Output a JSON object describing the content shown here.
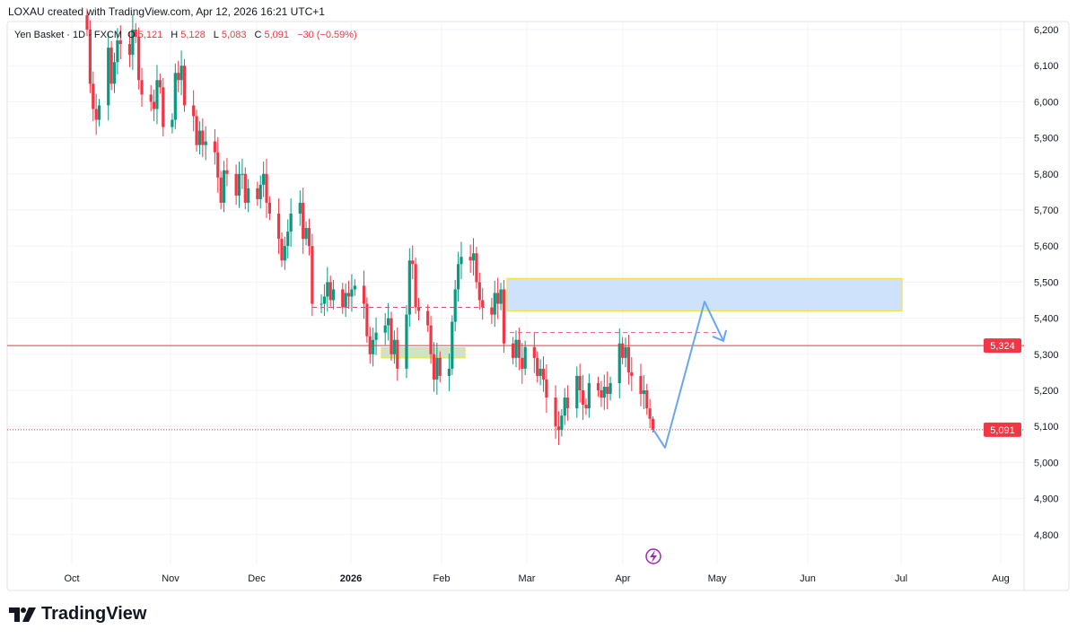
{
  "header": {
    "credit": "LOXAU created with TradingView.com, Apr 12, 2026 16:21 UTC+1",
    "symbol": "Yen Basket · 1D · FXCM",
    "open_label": "O",
    "open": "5,121",
    "high_label": "H",
    "high": "5,128",
    "low_label": "L",
    "low": "5,083",
    "close_label": "C",
    "close": "5,091",
    "change": "−30 (−0.59%)"
  },
  "footer": {
    "brand": "TradingView",
    "logo_icon": "tradingview-logo-icon"
  },
  "colors": {
    "up": "#089981",
    "down": "#f23645",
    "zone": "#cfe2fb",
    "zone_border": "#f5e04a",
    "arrow": "#6aa6f0",
    "event": "#9c27b0"
  },
  "chart_data": {
    "type": "candlestick",
    "title": "",
    "y_ticks": [
      "6,200",
      "6,100",
      "6,000",
      "5,900",
      "5,800",
      "5,700",
      "5,600",
      "5,500",
      "5,400",
      "5,300",
      "5,200",
      "5,100",
      "5,000",
      "4,900",
      "4,800"
    ],
    "ylim": [
      4700,
      6260
    ],
    "x_ticks": [
      "Oct",
      "Nov",
      "Dec",
      "2026",
      "Feb",
      "Mar",
      "Apr",
      "May",
      "Jun",
      "Jul",
      "Aug"
    ],
    "grid": true,
    "first_open": 6240,
    "weekly_closes": [
      [
        6200,
        6050,
        5980,
        5950,
        5990
      ],
      [
        6150,
        6050,
        6110,
        6170,
        6160
      ],
      [
        6130,
        6200,
        6180,
        6060,
        6020
      ],
      [
        6000,
        5980,
        6060,
        6040,
        5930
      ],
      [
        5950,
        6080,
        6060,
        6100,
        5990
      ],
      [
        5960,
        5880,
        5920,
        5880,
        5890
      ],
      [
        5860,
        5790,
        5720,
        5810,
        5800
      ],
      [
        5740,
        5800,
        5800,
        5720,
        5760
      ],
      [
        5730,
        5770,
        5800,
        5720,
        5690
      ],
      [
        5620,
        5560,
        5600,
        5640,
        5690
      ],
      [
        5720,
        5620,
        5650,
        5600,
        5440
      ],
      [
        5440,
        5460,
        5500,
        5450,
        5480
      ],
      [
        5430,
        5470,
        5460,
        5480,
        5490
      ],
      [
        5440,
        5350,
        5300,
        5340,
        5360
      ],
      [
        5380,
        5400,
        5300,
        5340,
        5260
      ],
      [
        5410,
        5560,
        5550,
        5430,
        5420
      ],
      [
        5380,
        5300,
        5230,
        5290,
        5240
      ],
      [
        5260,
        5390,
        5480,
        5550,
        5570
      ],
      [
        5560,
        5580,
        5500,
        5450,
        5430
      ],
      [
        5410,
        5470,
        5440,
        5480,
        5330
      ],
      [
        5290,
        5340,
        5290,
        5260,
        5320
      ],
      [
        5290,
        5240,
        5260,
        5230,
        5180
      ],
      [
        5100,
        5090,
        5130,
        5180,
        5150
      ],
      [
        5240,
        5200,
        5160,
        5150,
        5220
      ],
      [
        5200,
        5180,
        5210,
        5190,
        5220
      ],
      [
        5330,
        5290,
        5320,
        5250,
        5240
      ],
      [
        5190,
        5200,
        5150,
        5121,
        5091
      ]
    ],
    "last_bar": {
      "o": 5121,
      "h": 5128,
      "l": 5083,
      "c": 5091
    },
    "price_lines": [
      {
        "label": "5,324",
        "value": 5324,
        "style": "solid"
      },
      {
        "label": "5,091",
        "value": 5091,
        "style": "dotted"
      }
    ],
    "zones": [
      {
        "top": 5510,
        "bottom": 5420,
        "color": "blue"
      },
      {
        "top": 5318,
        "bottom": 5290,
        "color": "green"
      }
    ],
    "dashed_levels": [
      5430,
      5360
    ],
    "projection": [
      5091,
      5041,
      5446,
      5337
    ]
  }
}
